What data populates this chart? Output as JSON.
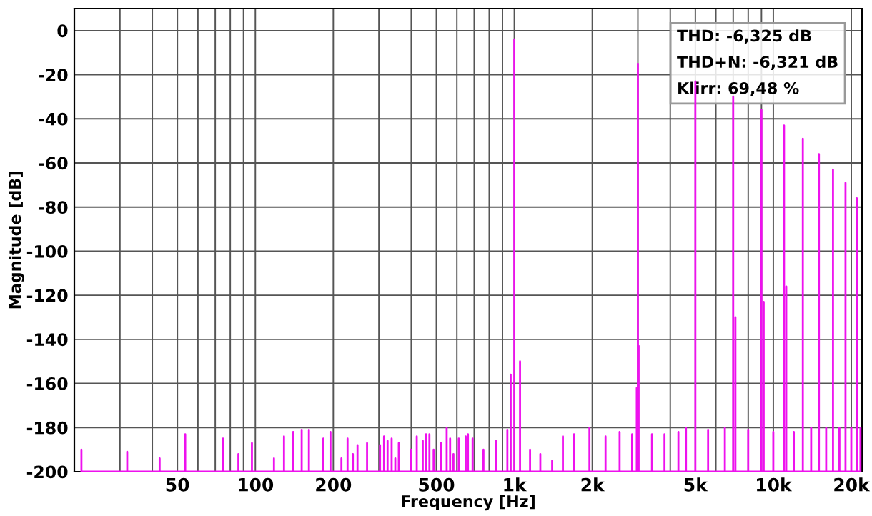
{
  "chart_data": {
    "type": "line",
    "xlabel": "Frequency [Hz]",
    "ylabel": "Magnitude [dB]",
    "log": "x",
    "grid": true,
    "line_style": "solid",
    "xlim": [
      20,
      22000
    ],
    "ylim": [
      -200,
      10
    ],
    "xticks": [
      {
        "value": 30,
        "label": null
      },
      {
        "value": 40,
        "label": null
      },
      50,
      {
        "value": 60,
        "label": null
      },
      {
        "value": 70,
        "label": null
      },
      {
        "value": 80,
        "label": null
      },
      {
        "value": 90,
        "label": null
      },
      100,
      200,
      {
        "value": 300,
        "label": null
      },
      {
        "value": 400,
        "label": null
      },
      500,
      {
        "value": 600,
        "label": null
      },
      {
        "value": 700,
        "label": null
      },
      {
        "value": 800,
        "label": null
      },
      {
        "value": 900,
        "label": null
      },
      {
        "value": 1000,
        "label": "1k"
      },
      {
        "value": 2000,
        "label": "2k"
      },
      {
        "value": 3000,
        "label": null
      },
      {
        "value": 4000,
        "label": null
      },
      {
        "value": 5000,
        "label": "5k"
      },
      {
        "value": 6000,
        "label": null
      },
      {
        "value": 7000,
        "label": null
      },
      {
        "value": 8000,
        "label": null
      },
      {
        "value": 9000,
        "label": null
      },
      {
        "value": 10000,
        "label": "10k"
      },
      {
        "value": 20000,
        "label": "20k"
      }
    ],
    "yticks": [
      0,
      -20,
      -40,
      -60,
      -80,
      -100,
      -120,
      -140,
      -160,
      -180,
      -200
    ],
    "annotations": [
      "THD: -6,325 dB",
      "THD+N: -6,321 dB",
      "Klirr: 69,48 %"
    ],
    "series": [
      {
        "color": "#ee11ee",
        "x": [
          21.3,
          21.3,
          21.3,
          32,
          32,
          32,
          42.7,
          42.7,
          42.7,
          53.6,
          53.6,
          53.6,
          75,
          75,
          75,
          86,
          86,
          86,
          97,
          97,
          97,
          118,
          118,
          118,
          129,
          129,
          129,
          140,
          140,
          140,
          151,
          151,
          151,
          161,
          161,
          161,
          183,
          183,
          183,
          195,
          195,
          195,
          215,
          215,
          215,
          227,
          227,
          227,
          238,
          238,
          238,
          248,
          248,
          248,
          270,
          270,
          270,
          303,
          303,
          303,
          314,
          314,
          314,
          324,
          324,
          324,
          336,
          336,
          336,
          347,
          347,
          347,
          358,
          358,
          358,
          399,
          399,
          399,
          420,
          420,
          420,
          443,
          443,
          443,
          456,
          456,
          456,
          470,
          470,
          470,
          488,
          488,
          488,
          521,
          521,
          521,
          548,
          548,
          548,
          565,
          565,
          565,
          582,
          582,
          582,
          610,
          610,
          610,
          649,
          649,
          649,
          662,
          662,
          662,
          690,
          690,
          690,
          760,
          760,
          760,
          850,
          850,
          850,
          940,
          940,
          940,
          968,
          968,
          968,
          1000,
          1000,
          1000,
          1052,
          1052,
          1052,
          1150,
          1150,
          1150,
          1260,
          1260,
          1260,
          1400,
          1400,
          1400,
          1540,
          1540,
          1540,
          1700,
          1700,
          1700,
          1950,
          1950,
          1950,
          2250,
          2250,
          2250,
          2550,
          2550,
          2550,
          2850,
          2850,
          2850,
          2970,
          2970,
          2970,
          3000,
          3000,
          3000,
          3020,
          3020,
          3020,
          3400,
          3400,
          3400,
          3800,
          3800,
          3800,
          4300,
          4300,
          4300,
          4600,
          4600,
          4600,
          5000,
          5000,
          5000,
          5600,
          5600,
          5600,
          6500,
          6500,
          6500,
          7000,
          7000,
          7000,
          7140,
          7140,
          7140,
          8000,
          8000,
          8000,
          9000,
          9000,
          9000,
          9180,
          9180,
          9180,
          10000,
          10000,
          10000,
          11000,
          11000,
          11000,
          11220,
          11220,
          11220,
          12000,
          12000,
          12000,
          13000,
          13000,
          13000,
          14000,
          14000,
          14000,
          15000,
          15000,
          15000,
          16000,
          16000,
          16000,
          17000,
          17000,
          17000,
          18000,
          18000,
          18000,
          19000,
          19000,
          19000,
          20000,
          20000,
          20000,
          21000,
          21000,
          21000,
          21700,
          21700,
          21700
        ],
        "values": [
          -200,
          -190,
          -200,
          -200,
          -191,
          -200,
          -200,
          -194,
          -200,
          -200,
          -183,
          -200,
          -200,
          -185,
          -200,
          -200,
          -192,
          -200,
          -200,
          -187,
          -200,
          -200,
          -194,
          -200,
          -200,
          -184,
          -200,
          -200,
          -182,
          -200,
          -200,
          -181,
          -200,
          -200,
          -181,
          -200,
          -200,
          -185,
          -200,
          -200,
          -182,
          -200,
          -200,
          -194,
          -200,
          -200,
          -185,
          -200,
          -200,
          -192,
          -200,
          -200,
          -188,
          -200,
          -200,
          -187,
          -200,
          -200,
          -188,
          -200,
          -200,
          -184,
          -200,
          -200,
          -186,
          -200,
          -200,
          -185,
          -200,
          -200,
          -194,
          -200,
          -200,
          -187,
          -200,
          -200,
          -190,
          -200,
          -200,
          -184,
          -200,
          -200,
          -186,
          -200,
          -200,
          -183,
          -200,
          -200,
          -183,
          -200,
          -200,
          -190,
          -200,
          -200,
          -187,
          -200,
          -200,
          -180,
          -200,
          -200,
          -185,
          -200,
          -200,
          -192,
          -200,
          -200,
          -185,
          -200,
          -200,
          -184,
          -200,
          -200,
          -183,
          -200,
          -200,
          -185,
          -200,
          -200,
          -190,
          -200,
          -200,
          -186,
          -200,
          -200,
          -181,
          -200,
          -200,
          -156,
          -200,
          -200,
          -4,
          -200,
          -200,
          -150,
          -200,
          -200,
          -190,
          -200,
          -200,
          -192,
          -200,
          -200,
          -195,
          -200,
          -200,
          -184,
          -200,
          -200,
          -183,
          -200,
          -200,
          -180,
          -200,
          -200,
          -184,
          -200,
          -200,
          -182,
          -200,
          -200,
          -183,
          -200,
          -200,
          -162,
          -200,
          -200,
          -15,
          -200,
          -200,
          -143,
          -200,
          -200,
          -183,
          -200,
          -200,
          -183,
          -200,
          -200,
          -182,
          -200,
          -200,
          -180,
          -200,
          -200,
          -23,
          -200,
          -200,
          -181,
          -200,
          -200,
          -180,
          -200,
          -200,
          -30,
          -200,
          -200,
          -130,
          -200,
          -200,
          -181,
          -200,
          -200,
          -36,
          -200,
          -200,
          -123,
          -200,
          -200,
          -182,
          -200,
          -200,
          -43,
          -200,
          -200,
          -116,
          -200,
          -200,
          -182,
          -200,
          -200,
          -49,
          -200,
          -200,
          -180,
          -200,
          -200,
          -56,
          -200,
          -200,
          -180,
          -200,
          -200,
          -63,
          -200,
          -200,
          -180,
          -200,
          -200,
          -69,
          -200,
          -200,
          -180,
          -200,
          -200,
          -76,
          -200,
          -200,
          -180,
          -200
        ]
      }
    ]
  }
}
